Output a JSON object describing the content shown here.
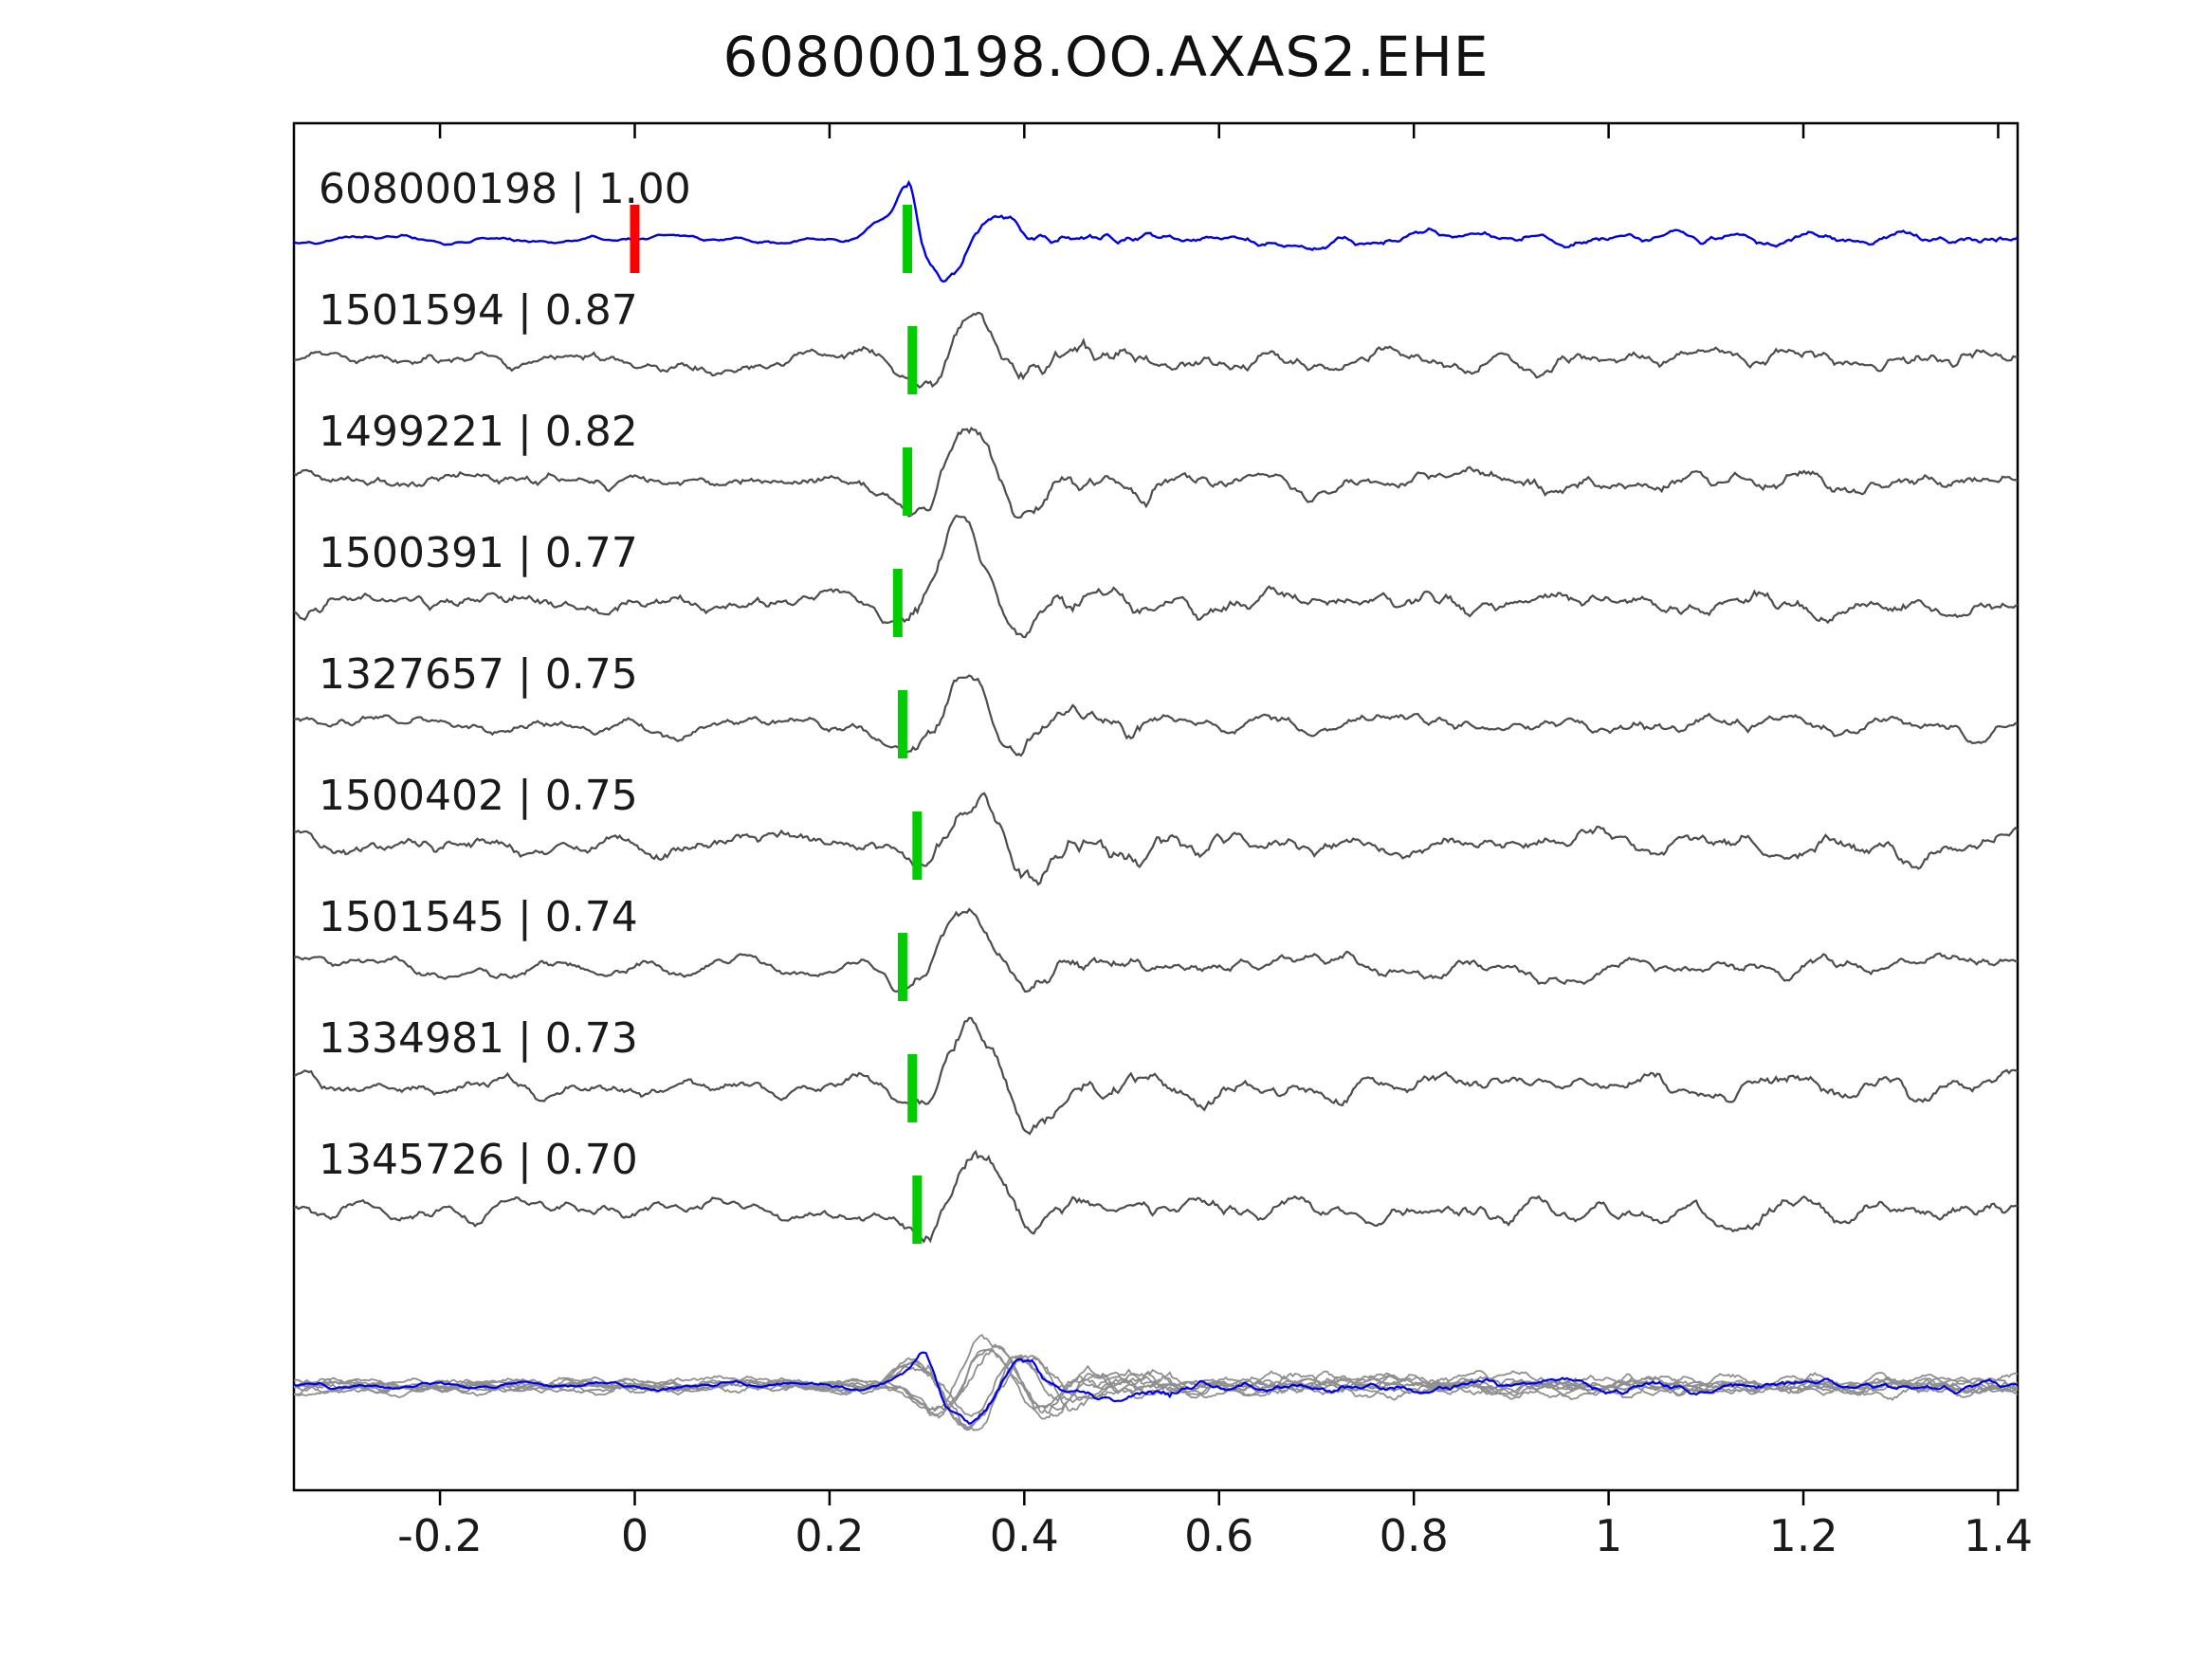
{
  "title": "608000198.OO.AXAS2.EHE",
  "chart_data": {
    "type": "line",
    "title": "608000198.OO.AXAS2.EHE",
    "xlabel": "",
    "ylabel": "",
    "xlim": [
      -0.35,
      1.42
    ],
    "grid": false,
    "legend": "none",
    "x_ticks": [
      -0.2,
      0,
      0.2,
      0.4,
      0.6,
      0.8,
      1,
      1.2,
      1.4
    ],
    "x_tick_labels": [
      "-0.2",
      "0",
      "0.2",
      "0.4",
      "0.6",
      "0.8",
      "1",
      "1.2",
      "1.4"
    ],
    "colors": {
      "reference_trace": "#0000ee",
      "template_trace": "#4d4d4d",
      "overlay_trace": "#8f8f8f",
      "pick_marker": "#00cc00",
      "reference_marker": "#ff0000",
      "axis": "#000000",
      "text": "#1a1a1a"
    },
    "traces": [
      {
        "id": "608000198",
        "correlation": 1.0,
        "label": "608000198 | 1.00",
        "role": "reference",
        "pick_time": 0.28,
        "reference_marker_time": 0.0
      },
      {
        "id": "1501594",
        "correlation": 0.87,
        "label": "1501594 | 0.87",
        "role": "template",
        "pick_time": 0.285
      },
      {
        "id": "1499221",
        "correlation": 0.82,
        "label": "1499221 | 0.82",
        "role": "template",
        "pick_time": 0.28
      },
      {
        "id": "1500391",
        "correlation": 0.77,
        "label": "1500391 | 0.77",
        "role": "template",
        "pick_time": 0.27
      },
      {
        "id": "1327657",
        "correlation": 0.75,
        "label": "1327657 | 0.75",
        "role": "template",
        "pick_time": 0.275
      },
      {
        "id": "1500402",
        "correlation": 0.75,
        "label": "1500402 | 0.75",
        "role": "template",
        "pick_time": 0.29
      },
      {
        "id": "1501545",
        "correlation": 0.74,
        "label": "1501545 | 0.74",
        "role": "template",
        "pick_time": 0.275
      },
      {
        "id": "1334981",
        "correlation": 0.73,
        "label": "1334981 | 0.73",
        "role": "template",
        "pick_time": 0.285
      },
      {
        "id": "1345726",
        "correlation": 0.7,
        "label": "1345726 | 0.70",
        "role": "template",
        "pick_time": 0.29
      }
    ],
    "overlay_row": {
      "description": "all traces overlaid and aligned on pick, reference trace in blue",
      "aligned_time": 0.3,
      "includes_reference": true
    }
  }
}
